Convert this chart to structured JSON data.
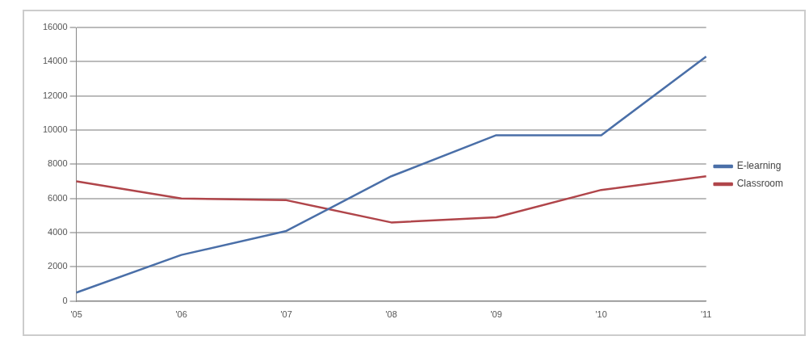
{
  "chart_data": {
    "type": "line",
    "categories": [
      "'05",
      "'06",
      "'07",
      "'08",
      "'09",
      "'10",
      "'11"
    ],
    "series": [
      {
        "name": "E-learning",
        "color": "#4a6fa8",
        "values": [
          500,
          2700,
          4100,
          7300,
          9700,
          9700,
          14300
        ]
      },
      {
        "name": "Classroom",
        "color": "#b0454a",
        "values": [
          7000,
          6000,
          5900,
          4600,
          4900,
          6500,
          7300
        ]
      }
    ],
    "ylim": [
      0,
      16000
    ],
    "yticks": [
      0,
      2000,
      4000,
      6000,
      8000,
      10000,
      12000,
      14000,
      16000
    ],
    "grid": "y",
    "legend": "right",
    "marker": "none"
  }
}
